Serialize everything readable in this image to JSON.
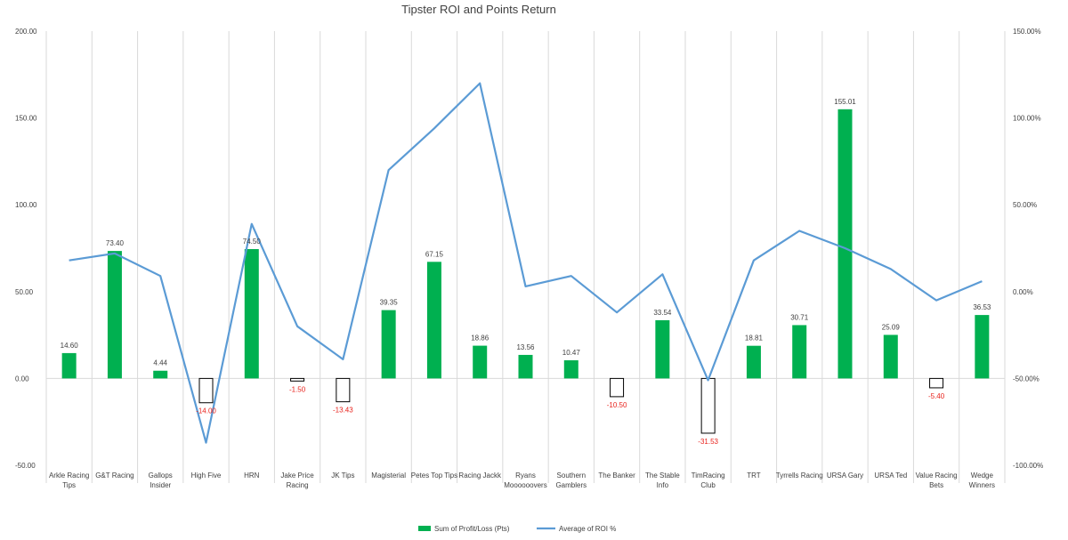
{
  "chart_data": {
    "type": "bar",
    "title": "Tipster ROI and Points Return",
    "categories": [
      [
        "Arkle Racing",
        "Tips"
      ],
      [
        "G&T Racing"
      ],
      [
        "Gallops",
        "Insider"
      ],
      [
        "High Five"
      ],
      [
        "HRN"
      ],
      [
        "Jake Price",
        "Racing"
      ],
      [
        "JK Tips"
      ],
      [
        "Magisterial"
      ],
      [
        "Petes Top Tips"
      ],
      [
        "Racing Jackk"
      ],
      [
        "Ryans",
        "Moooooovers"
      ],
      [
        "Southern",
        "Gamblers"
      ],
      [
        "The Banker"
      ],
      [
        "The Stable",
        "Info"
      ],
      [
        "TimRacing",
        "Club"
      ],
      [
        "TRT"
      ],
      [
        "Tyrrells Racing"
      ],
      [
        "URSA Gary"
      ],
      [
        "URSA Ted"
      ],
      [
        "Value Racing",
        "Bets"
      ],
      [
        "Wedge",
        "Winners"
      ]
    ],
    "series": [
      {
        "name": "Sum of Profit/Loss (Pts)",
        "type": "bar",
        "axis": "left",
        "color": "#00b050",
        "negative_fill": "#ffffff",
        "negative_stroke": "#000000",
        "values": [
          14.6,
          73.4,
          4.44,
          -14.0,
          74.5,
          -1.5,
          -13.43,
          39.35,
          67.15,
          18.86,
          13.56,
          10.47,
          -10.5,
          33.54,
          -31.53,
          18.81,
          30.71,
          155.01,
          25.09,
          -5.4,
          36.53
        ],
        "labels": [
          "14.60",
          "73.40",
          "4.44",
          "-14.00",
          "74.50",
          "-1.50",
          "-13.43",
          "39.35",
          "67.15",
          "18.86",
          "13.56",
          "10.47",
          "-10.50",
          "33.54",
          "-31.53",
          "18.81",
          "30.71",
          "155.01",
          "25.09",
          "-5.40",
          "36.53"
        ]
      },
      {
        "name": "Average of ROI %",
        "type": "line",
        "axis": "right",
        "color": "#5b9bd5",
        "values": [
          18,
          22,
          9,
          -87,
          39,
          -20,
          -39,
          70,
          94,
          120,
          3,
          9,
          -12,
          10,
          -51,
          18,
          35,
          25,
          13,
          -5,
          6
        ]
      }
    ],
    "ylim": [
      -50,
      200
    ],
    "yticks": [
      "-50.00",
      "0.00",
      "50.00",
      "100.00",
      "150.00",
      "200.00"
    ],
    "y2lim": [
      -100,
      150
    ],
    "y2ticks": [
      "-100.00%",
      "-50.00%",
      "0.00%",
      "50.00%",
      "100.00%",
      "150.00%"
    ],
    "grid": "vertical category lines",
    "legend": "bottom"
  }
}
